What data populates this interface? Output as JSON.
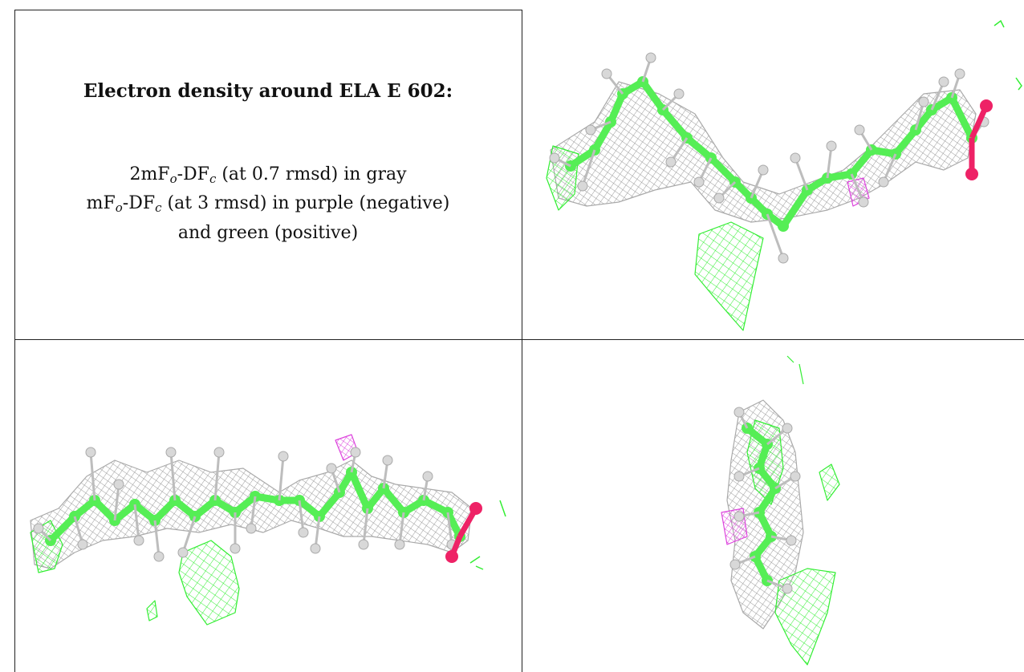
{
  "legend": {
    "title": "Electron density around ELA E 602:",
    "line1": {
      "prefix": "2mF",
      "sub1": "o",
      "mid": "-DF",
      "sub2": "c",
      "rest": " (at 0.7 rmsd) in gray"
    },
    "line2": {
      "prefix": "mF",
      "sub1": "o",
      "mid": "-DF",
      "sub2": "c",
      "rest": " (at 3 rmsd) in purple (negative)"
    },
    "line3": "and green (positive)"
  },
  "colors": {
    "mesh_gray": "#9a9a9a",
    "mesh_green": "#33ee33",
    "mesh_purple": "#dd44dd",
    "carbon": "#55ee55",
    "hydrogen": "#d8d8d8",
    "oxygen": "#ee2266",
    "grid_line": "#222222"
  }
}
